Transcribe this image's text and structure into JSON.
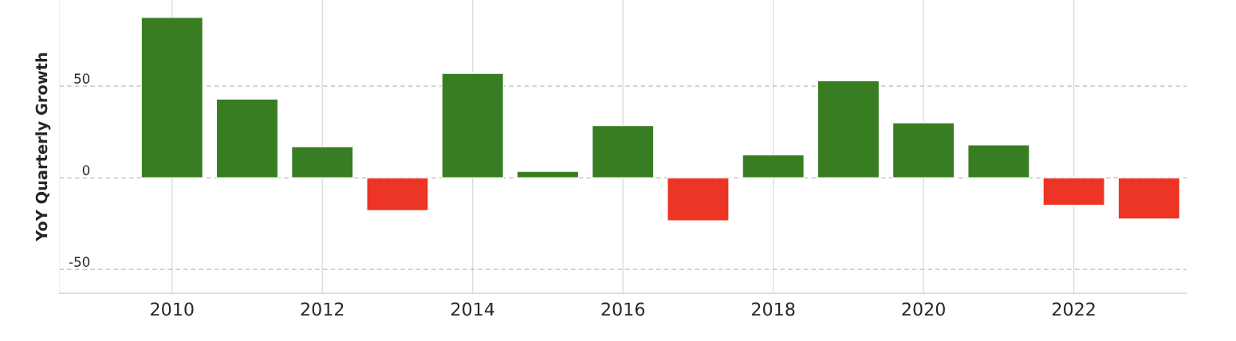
{
  "chart_data": {
    "type": "bar",
    "ylabel": "YoY Quarterly Growth",
    "x": [
      2010,
      2011,
      2012,
      2013,
      2014,
      2015,
      2016,
      2017,
      2018,
      2019,
      2020,
      2021,
      2022,
      2023
    ],
    "values": [
      87.5,
      43,
      17,
      -18,
      57,
      3.5,
      28.5,
      -23.5,
      12.5,
      53,
      30,
      18,
      -15,
      -22.5
    ],
    "colors": [
      "#387d22",
      "#387d22",
      "#387d22",
      "#ec3524",
      "#387d22",
      "#387d22",
      "#387d22",
      "#ec3524",
      "#387d22",
      "#387d22",
      "#387d22",
      "#387d22",
      "#ec3524",
      "#ec3524"
    ],
    "xlim": [
      2008.5,
      2023.5
    ],
    "xticks": [
      2010,
      2012,
      2014,
      2016,
      2018,
      2020,
      2022
    ],
    "ylim": [
      -63,
      97
    ],
    "yticks": [
      -50,
      0,
      50
    ],
    "grid": true
  }
}
